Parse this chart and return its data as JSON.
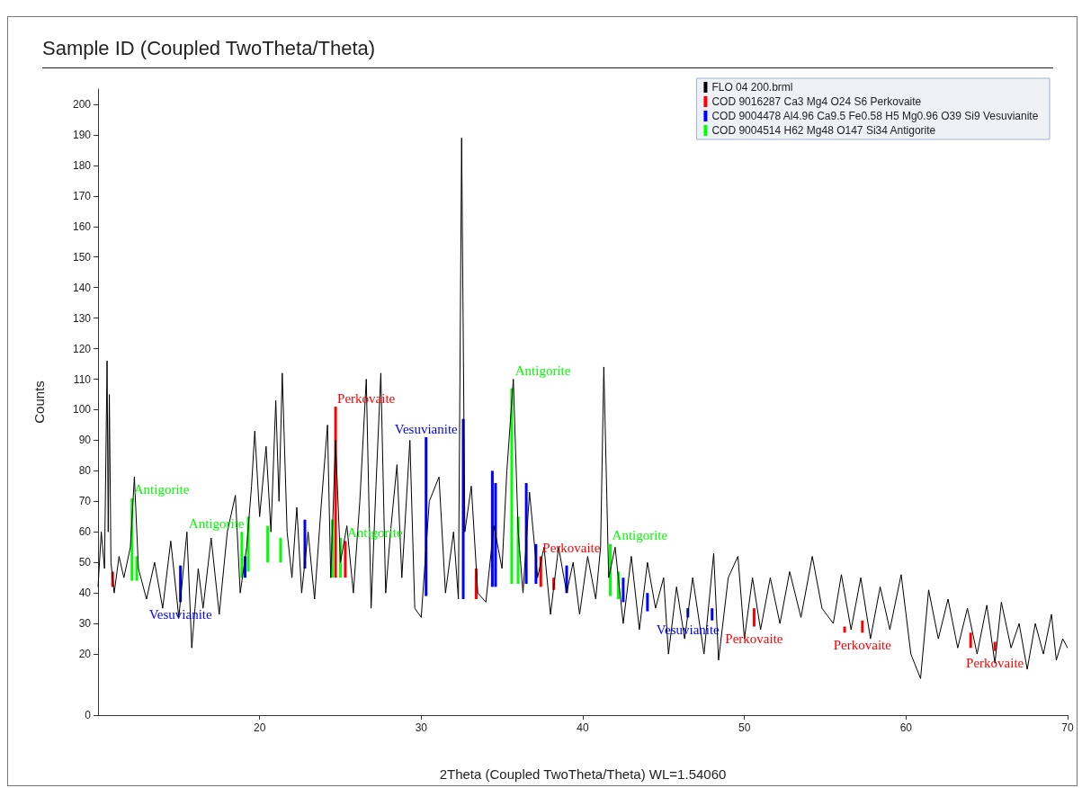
{
  "chart_data": {
    "type": "line",
    "title": "Sample ID (Coupled TwoTheta/Theta)",
    "xlabel": "2Theta (Coupled TwoTheta/Theta) WL=1.54060",
    "ylabel": "Counts",
    "xlim": [
      10,
      70
    ],
    "xticks": [
      20,
      30,
      40,
      50,
      60,
      70
    ],
    "ylim": [
      0,
      205
    ],
    "yticks": [
      0,
      20,
      30,
      40,
      50,
      60,
      70,
      80,
      90,
      100,
      110,
      120,
      130,
      140,
      150,
      160,
      170,
      180,
      190,
      200
    ],
    "grid": false,
    "legend": "top right",
    "marker": "none",
    "line_style": "solid",
    "series": [
      {
        "name": "FLO 04 200.brml",
        "color": "#000000",
        "x": [
          10.0,
          10.2,
          10.4,
          10.56,
          10.63,
          10.7,
          10.8,
          11.0,
          11.3,
          11.6,
          12.0,
          12.25,
          12.5,
          13.0,
          13.5,
          14.0,
          14.5,
          15.0,
          15.5,
          15.8,
          16.2,
          16.5,
          17.0,
          17.5,
          18.0,
          18.5,
          18.8,
          19.2,
          19.5,
          19.7,
          20.0,
          20.4,
          20.7,
          21.0,
          21.2,
          21.4,
          21.7,
          22.0,
          22.3,
          22.6,
          23.0,
          23.4,
          23.8,
          24.2,
          24.4,
          24.7,
          25.0,
          25.4,
          25.8,
          26.2,
          26.6,
          26.9,
          27.2,
          27.5,
          27.8,
          28.1,
          28.5,
          28.8,
          29.3,
          29.6,
          30.0,
          30.5,
          31.1,
          31.5,
          32.0,
          32.3,
          32.5,
          32.7,
          33.1,
          33.5,
          34.0,
          34.5,
          35.0,
          35.3,
          35.7,
          36.0,
          36.3,
          36.7,
          37.2,
          37.6,
          38.0,
          38.5,
          39.0,
          39.4,
          39.8,
          40.3,
          40.8,
          41.1,
          41.3,
          41.6,
          42.0,
          42.5,
          43.0,
          43.5,
          44.0,
          44.5,
          45.0,
          45.3,
          45.8,
          46.3,
          46.8,
          47.5,
          48.1,
          48.4,
          49.0,
          49.6,
          50.0,
          50.5,
          51.0,
          51.6,
          52.2,
          52.8,
          53.5,
          54.2,
          54.8,
          55.5,
          56.0,
          56.6,
          57.2,
          57.8,
          58.4,
          59.0,
          59.7,
          60.3,
          60.9,
          61.4,
          62.0,
          62.6,
          63.2,
          63.8,
          64.4,
          65.0,
          65.5,
          65.9,
          66.5,
          67.0,
          67.5,
          68.0,
          68.5,
          69.0,
          69.3,
          69.7,
          70.0
        ],
        "values": [
          42,
          60,
          48,
          116,
          60,
          105,
          50,
          40,
          52,
          45,
          55,
          78,
          48,
          38,
          50,
          35,
          57,
          32,
          60,
          22,
          48,
          35,
          58,
          33,
          60,
          72,
          40,
          55,
          75,
          93,
          65,
          88,
          60,
          103,
          70,
          112,
          60,
          45,
          68,
          40,
          60,
          38,
          68,
          95,
          45,
          90,
          50,
          62,
          40,
          70,
          110,
          35,
          75,
          112,
          40,
          60,
          82,
          45,
          90,
          35,
          32,
          70,
          78,
          40,
          60,
          38,
          189,
          60,
          75,
          40,
          37,
          62,
          48,
          80,
          110,
          60,
          40,
          73,
          45,
          55,
          33,
          55,
          40,
          50,
          33,
          52,
          38,
          55,
          114,
          45,
          55,
          30,
          52,
          28,
          50,
          35,
          45,
          20,
          42,
          25,
          45,
          20,
          53,
          18,
          45,
          52,
          25,
          45,
          28,
          45,
          30,
          47,
          32,
          52,
          35,
          30,
          46,
          28,
          45,
          25,
          42,
          28,
          46,
          20,
          12,
          41,
          25,
          38,
          22,
          35,
          20,
          36,
          17,
          37,
          22,
          30,
          15,
          30,
          20,
          33,
          18,
          25,
          22
        ]
      },
      {
        "name": "COD 9016287 Ca3 Mg4 O24 S6 Perkovaite",
        "type": "bar",
        "color": "#ff0000",
        "x": [
          10.9,
          24.7,
          25.3,
          33.4,
          37.4,
          38.2,
          50.6,
          56.2,
          57.3,
          64.0,
          65.5
        ],
        "base": [
          42,
          45,
          45,
          38,
          42,
          41,
          29,
          27,
          27,
          22,
          21
        ],
        "values": [
          5,
          56,
          12,
          10,
          10,
          4,
          6,
          2,
          4,
          5,
          3
        ]
      },
      {
        "name": "COD 9004478 Al4.96 Ca9.5 Fe0.58 H5 Mg0.96 O39 Si9 Vesuvianite",
        "type": "bar",
        "color": "#0000ff",
        "x": [
          15.1,
          19.1,
          22.8,
          30.3,
          32.6,
          34.4,
          34.6,
          36.5,
          37.1,
          39.0,
          42.5,
          44.0,
          46.5,
          48.0
        ],
        "base": [
          37,
          45,
          48,
          39,
          38,
          42,
          42,
          43,
          43,
          40,
          37,
          34,
          32,
          31
        ],
        "values": [
          12,
          7,
          16,
          52,
          59,
          38,
          34,
          33,
          13,
          9,
          8,
          6,
          3,
          4
        ]
      },
      {
        "name": "COD 9004514 H62 Mg48 O147 Si34 Antigorite",
        "type": "bar",
        "color": "#00ff00",
        "x": [
          12.1,
          12.4,
          18.9,
          19.3,
          20.5,
          21.3,
          24.5,
          25.0,
          35.6,
          36.0,
          41.7,
          42.2
        ],
        "base": [
          44,
          44,
          45,
          47,
          50,
          50,
          45,
          45,
          43,
          43,
          39,
          38
        ],
        "values": [
          27,
          8,
          15,
          18,
          12,
          8,
          19,
          13,
          64,
          22,
          17,
          9
        ]
      }
    ],
    "annotations": [
      {
        "text": "Antigorite",
        "x": 12.1,
        "y": 71
      },
      {
        "text": "Antigorite",
        "x": 15.5,
        "y": 60
      },
      {
        "text": "Antigorite",
        "x": 25.3,
        "y": 57
      },
      {
        "text": "Antigorite",
        "x": 35.7,
        "y": 110
      },
      {
        "text": "Antigorite",
        "x": 41.7,
        "y": 56
      },
      {
        "text": "Perkovaite",
        "x": 24.7,
        "y": 101
      },
      {
        "text": "Perkovaite",
        "x": 37.4,
        "y": 52
      },
      {
        "text": "Perkovaite",
        "x": 50.6,
        "y": 29
      },
      {
        "text": "Perkovaite",
        "x": 57.3,
        "y": 27
      },
      {
        "text": "Perkovaite",
        "x": 65.5,
        "y": 21
      },
      {
        "text": "Vesuvianite",
        "x": 15.1,
        "y": 37
      },
      {
        "text": "Vesuvianite",
        "x": 30.3,
        "y": 91
      },
      {
        "text": "Vesuvianite",
        "x": 46.5,
        "y": 32
      }
    ]
  }
}
